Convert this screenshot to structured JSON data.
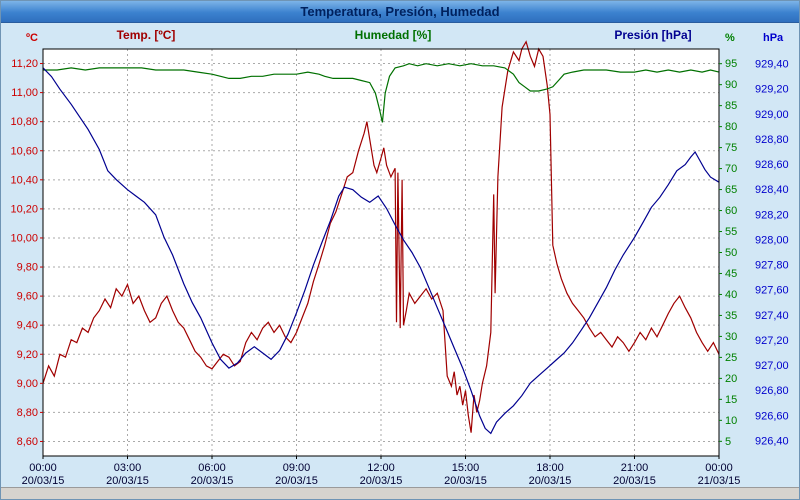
{
  "window": {
    "title": "Temperatura, Presión, Humedad"
  },
  "colors": {
    "background": "#d2e7f5",
    "plot_bg": "#ffffff",
    "grid": "#aaaaaa",
    "axis_text": "#000033",
    "titlebar_text": "#00215e"
  },
  "chart_data": {
    "type": "line",
    "title": "Temperatura, Presión, Humedad",
    "legend_position": "top",
    "grid": true,
    "x_axis": {
      "hours": 24,
      "tick_step": 3,
      "ticks": [
        {
          "time": "00:00",
          "date": "20/03/15"
        },
        {
          "time": "03:00",
          "date": "20/03/15"
        },
        {
          "time": "06:00",
          "date": "20/03/15"
        },
        {
          "time": "09:00",
          "date": "20/03/15"
        },
        {
          "time": "12:00",
          "date": "20/03/15"
        },
        {
          "time": "15:00",
          "date": "20/03/15"
        },
        {
          "time": "18:00",
          "date": "20/03/15"
        },
        {
          "time": "21:00",
          "date": "20/03/15"
        },
        {
          "time": "00:00",
          "date": "21/03/15"
        }
      ]
    },
    "axes": {
      "temp": {
        "label": "ºC",
        "color": "#cc0000",
        "min": 8.5,
        "max": 11.3,
        "tick_start": 8.6,
        "tick_end": 11.2,
        "tick_step": 0.2,
        "decimals": 2
      },
      "hum": {
        "label": "%",
        "color": "#008000",
        "min": 1.5,
        "max": 98.5,
        "tick_start": 5,
        "tick_end": 95,
        "tick_step": 5,
        "decimals": 0
      },
      "pres": {
        "label": "hPa",
        "color": "#0000cc",
        "min": 926.28,
        "max": 929.52,
        "tick_start": 926.4,
        "tick_end": 929.4,
        "tick_step": 0.2,
        "decimals": 2
      }
    },
    "series": [
      {
        "name": "Temp. [ºC]",
        "axis": "temp",
        "color": "#a00000",
        "points": [
          [
            0,
            9.0
          ],
          [
            0.2,
            9.12
          ],
          [
            0.4,
            9.05
          ],
          [
            0.6,
            9.2
          ],
          [
            0.8,
            9.18
          ],
          [
            1.0,
            9.3
          ],
          [
            1.2,
            9.28
          ],
          [
            1.4,
            9.38
          ],
          [
            1.6,
            9.35
          ],
          [
            1.8,
            9.45
          ],
          [
            2.0,
            9.5
          ],
          [
            2.2,
            9.58
          ],
          [
            2.4,
            9.52
          ],
          [
            2.6,
            9.65
          ],
          [
            2.8,
            9.6
          ],
          [
            3.0,
            9.68
          ],
          [
            3.2,
            9.55
          ],
          [
            3.4,
            9.6
          ],
          [
            3.6,
            9.5
          ],
          [
            3.8,
            9.42
          ],
          [
            4.0,
            9.45
          ],
          [
            4.2,
            9.55
          ],
          [
            4.4,
            9.6
          ],
          [
            4.6,
            9.5
          ],
          [
            4.8,
            9.42
          ],
          [
            5.0,
            9.38
          ],
          [
            5.2,
            9.3
          ],
          [
            5.4,
            9.22
          ],
          [
            5.6,
            9.18
          ],
          [
            5.8,
            9.12
          ],
          [
            6.0,
            9.1
          ],
          [
            6.2,
            9.15
          ],
          [
            6.4,
            9.2
          ],
          [
            6.6,
            9.18
          ],
          [
            6.8,
            9.12
          ],
          [
            7.0,
            9.15
          ],
          [
            7.2,
            9.28
          ],
          [
            7.4,
            9.35
          ],
          [
            7.6,
            9.3
          ],
          [
            7.8,
            9.38
          ],
          [
            8.0,
            9.42
          ],
          [
            8.2,
            9.35
          ],
          [
            8.4,
            9.4
          ],
          [
            8.6,
            9.32
          ],
          [
            8.8,
            9.28
          ],
          [
            9.0,
            9.35
          ],
          [
            9.2,
            9.45
          ],
          [
            9.4,
            9.55
          ],
          [
            9.6,
            9.7
          ],
          [
            9.8,
            9.82
          ],
          [
            10.0,
            9.95
          ],
          [
            10.2,
            10.1
          ],
          [
            10.4,
            10.18
          ],
          [
            10.6,
            10.3
          ],
          [
            10.8,
            10.42
          ],
          [
            11.0,
            10.45
          ],
          [
            11.2,
            10.6
          ],
          [
            11.4,
            10.72
          ],
          [
            11.5,
            10.8
          ],
          [
            11.6,
            10.68
          ],
          [
            11.75,
            10.5
          ],
          [
            11.85,
            10.45
          ],
          [
            12.0,
            10.55
          ],
          [
            12.1,
            10.62
          ],
          [
            12.2,
            10.5
          ],
          [
            12.35,
            10.42
          ],
          [
            12.5,
            10.48
          ],
          [
            12.55,
            9.42
          ],
          [
            12.6,
            10.45
          ],
          [
            12.68,
            9.38
          ],
          [
            12.75,
            10.4
          ],
          [
            12.8,
            9.4
          ],
          [
            12.9,
            9.5
          ],
          [
            13.0,
            9.62
          ],
          [
            13.2,
            9.55
          ],
          [
            13.4,
            9.6
          ],
          [
            13.6,
            9.65
          ],
          [
            13.8,
            9.58
          ],
          [
            14.0,
            9.62
          ],
          [
            14.2,
            9.5
          ],
          [
            14.35,
            9.05
          ],
          [
            14.5,
            8.98
          ],
          [
            14.6,
            9.08
          ],
          [
            14.7,
            8.92
          ],
          [
            14.8,
            8.98
          ],
          [
            14.9,
            8.85
          ],
          [
            15.0,
            8.95
          ],
          [
            15.1,
            8.78
          ],
          [
            15.2,
            8.66
          ],
          [
            15.3,
            8.92
          ],
          [
            15.4,
            8.8
          ],
          [
            15.5,
            8.88
          ],
          [
            15.6,
            9.0
          ],
          [
            15.75,
            9.12
          ],
          [
            15.9,
            9.35
          ],
          [
            16.0,
            10.3
          ],
          [
            16.05,
            9.62
          ],
          [
            16.15,
            10.42
          ],
          [
            16.3,
            10.9
          ],
          [
            16.5,
            11.15
          ],
          [
            16.7,
            11.28
          ],
          [
            16.9,
            11.22
          ],
          [
            17.0,
            11.3
          ],
          [
            17.15,
            11.35
          ],
          [
            17.3,
            11.25
          ],
          [
            17.45,
            11.18
          ],
          [
            17.6,
            11.3
          ],
          [
            17.75,
            11.25
          ],
          [
            17.9,
            11.05
          ],
          [
            18.0,
            10.85
          ],
          [
            18.1,
            9.95
          ],
          [
            18.25,
            9.82
          ],
          [
            18.4,
            9.72
          ],
          [
            18.6,
            9.62
          ],
          [
            18.8,
            9.55
          ],
          [
            19.0,
            9.5
          ],
          [
            19.2,
            9.45
          ],
          [
            19.4,
            9.38
          ],
          [
            19.6,
            9.32
          ],
          [
            19.8,
            9.35
          ],
          [
            20.0,
            9.3
          ],
          [
            20.2,
            9.25
          ],
          [
            20.4,
            9.32
          ],
          [
            20.6,
            9.28
          ],
          [
            20.8,
            9.22
          ],
          [
            21.0,
            9.28
          ],
          [
            21.2,
            9.35
          ],
          [
            21.4,
            9.3
          ],
          [
            21.6,
            9.38
          ],
          [
            21.8,
            9.32
          ],
          [
            22.0,
            9.4
          ],
          [
            22.2,
            9.48
          ],
          [
            22.4,
            9.55
          ],
          [
            22.6,
            9.6
          ],
          [
            22.8,
            9.52
          ],
          [
            23.0,
            9.45
          ],
          [
            23.2,
            9.35
          ],
          [
            23.4,
            9.28
          ],
          [
            23.6,
            9.22
          ],
          [
            23.8,
            9.28
          ],
          [
            24.0,
            9.2
          ]
        ]
      },
      {
        "name": "Humedad [%]",
        "axis": "hum",
        "color": "#007000",
        "points": [
          [
            0,
            93.5
          ],
          [
            0.5,
            93.5
          ],
          [
            1,
            94
          ],
          [
            1.5,
            93.5
          ],
          [
            2,
            94
          ],
          [
            2.5,
            94
          ],
          [
            3,
            94
          ],
          [
            3.5,
            94
          ],
          [
            4,
            93.5
          ],
          [
            4.5,
            93.5
          ],
          [
            5,
            93.5
          ],
          [
            5.5,
            93
          ],
          [
            6,
            92.5
          ],
          [
            6.3,
            92
          ],
          [
            6.6,
            91.5
          ],
          [
            7,
            91.5
          ],
          [
            7.4,
            92
          ],
          [
            7.8,
            92
          ],
          [
            8.2,
            92.5
          ],
          [
            8.6,
            92.5
          ],
          [
            9,
            92.5
          ],
          [
            9.4,
            93
          ],
          [
            9.8,
            92.5
          ],
          [
            10,
            92
          ],
          [
            10.3,
            91.5
          ],
          [
            10.6,
            91.5
          ],
          [
            11,
            91.5
          ],
          [
            11.3,
            91
          ],
          [
            11.6,
            90.5
          ],
          [
            11.8,
            88
          ],
          [
            11.95,
            84
          ],
          [
            12.05,
            81
          ],
          [
            12.15,
            88
          ],
          [
            12.3,
            92
          ],
          [
            12.5,
            94
          ],
          [
            12.8,
            94.5
          ],
          [
            13,
            95
          ],
          [
            13.3,
            94.5
          ],
          [
            13.6,
            95
          ],
          [
            14,
            94.5
          ],
          [
            14.4,
            95
          ],
          [
            14.8,
            94.5
          ],
          [
            15.2,
            95
          ],
          [
            15.6,
            94.5
          ],
          [
            16,
            94.5
          ],
          [
            16.4,
            94
          ],
          [
            16.7,
            92.5
          ],
          [
            16.9,
            90.5
          ],
          [
            17.1,
            89.5
          ],
          [
            17.3,
            88.5
          ],
          [
            17.6,
            88.5
          ],
          [
            17.9,
            89
          ],
          [
            18.1,
            89.5
          ],
          [
            18.3,
            91
          ],
          [
            18.5,
            92.5
          ],
          [
            18.8,
            93
          ],
          [
            19.2,
            93.5
          ],
          [
            19.6,
            93.5
          ],
          [
            20,
            93.5
          ],
          [
            20.5,
            93
          ],
          [
            21,
            93
          ],
          [
            21.4,
            93.5
          ],
          [
            21.8,
            93
          ],
          [
            22.2,
            93.5
          ],
          [
            22.6,
            93
          ],
          [
            23,
            93.5
          ],
          [
            23.4,
            93
          ],
          [
            23.7,
            93.5
          ],
          [
            24,
            93
          ]
        ]
      },
      {
        "name": "Presión [hPa]",
        "axis": "pres",
        "color": "#000090",
        "points": [
          [
            0,
            929.37
          ],
          [
            0.3,
            929.3
          ],
          [
            0.6,
            929.2
          ],
          [
            1,
            929.08
          ],
          [
            1.3,
            928.98
          ],
          [
            1.6,
            928.88
          ],
          [
            2,
            928.72
          ],
          [
            2.3,
            928.55
          ],
          [
            2.6,
            928.48
          ],
          [
            3,
            928.4
          ],
          [
            3.3,
            928.35
          ],
          [
            3.6,
            928.3
          ],
          [
            4,
            928.2
          ],
          [
            4.3,
            928.02
          ],
          [
            4.6,
            927.88
          ],
          [
            5,
            927.65
          ],
          [
            5.3,
            927.5
          ],
          [
            5.6,
            927.38
          ],
          [
            6,
            927.18
          ],
          [
            6.3,
            927.05
          ],
          [
            6.6,
            926.98
          ],
          [
            6.9,
            927.02
          ],
          [
            7.2,
            927.1
          ],
          [
            7.5,
            927.15
          ],
          [
            7.8,
            927.1
          ],
          [
            8.1,
            927.05
          ],
          [
            8.4,
            927.12
          ],
          [
            8.7,
            927.25
          ],
          [
            9,
            927.42
          ],
          [
            9.3,
            927.6
          ],
          [
            9.6,
            927.8
          ],
          [
            9.9,
            927.98
          ],
          [
            10.2,
            928.15
          ],
          [
            10.5,
            928.35
          ],
          [
            10.7,
            928.42
          ],
          [
            11,
            928.4
          ],
          [
            11.3,
            928.34
          ],
          [
            11.6,
            928.3
          ],
          [
            11.9,
            928.35
          ],
          [
            12.2,
            928.25
          ],
          [
            12.5,
            928.12
          ],
          [
            12.8,
            928.0
          ],
          [
            13.1,
            927.9
          ],
          [
            13.4,
            927.78
          ],
          [
            13.7,
            927.62
          ],
          [
            14,
            927.46
          ],
          [
            14.3,
            927.3
          ],
          [
            14.6,
            927.14
          ],
          [
            14.9,
            926.98
          ],
          [
            15.2,
            926.8
          ],
          [
            15.5,
            926.6
          ],
          [
            15.7,
            926.5
          ],
          [
            15.9,
            926.46
          ],
          [
            16.1,
            926.55
          ],
          [
            16.4,
            926.62
          ],
          [
            16.7,
            926.68
          ],
          [
            17,
            926.76
          ],
          [
            17.3,
            926.86
          ],
          [
            17.6,
            926.92
          ],
          [
            17.9,
            926.98
          ],
          [
            18.2,
            927.04
          ],
          [
            18.5,
            927.1
          ],
          [
            18.8,
            927.18
          ],
          [
            19.1,
            927.28
          ],
          [
            19.4,
            927.38
          ],
          [
            19.7,
            927.5
          ],
          [
            20,
            927.62
          ],
          [
            20.3,
            927.76
          ],
          [
            20.6,
            927.88
          ],
          [
            21,
            928.02
          ],
          [
            21.3,
            928.14
          ],
          [
            21.6,
            928.26
          ],
          [
            21.9,
            928.34
          ],
          [
            22.2,
            928.44
          ],
          [
            22.5,
            928.55
          ],
          [
            22.8,
            928.6
          ],
          [
            23,
            928.66
          ],
          [
            23.15,
            928.7
          ],
          [
            23.3,
            928.64
          ],
          [
            23.5,
            928.56
          ],
          [
            23.7,
            928.5
          ],
          [
            24,
            928.46
          ]
        ]
      }
    ]
  }
}
